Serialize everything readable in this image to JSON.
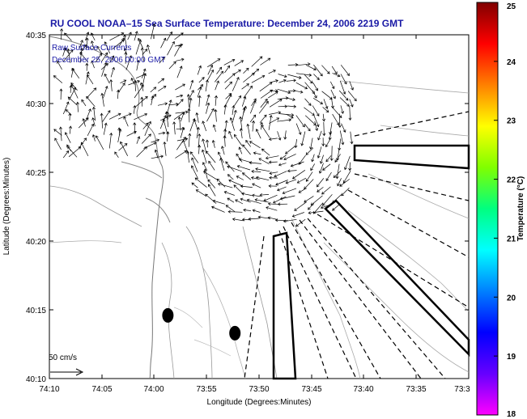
{
  "title": "RU COOL  NOAA–15  Sea Surface Temperature:  December 24, 2006 2219 GMT",
  "overlay": {
    "line1": "Raw Surface Currents",
    "line2": "December 25, 2006 00:00 GMT",
    "scale_label": "50 cm/s"
  },
  "chart_data": {
    "type": "map",
    "xlabel": "Longitude (Degrees:Minutes)",
    "ylabel": "Latitude (Degrees:Minutes)",
    "x_ticks": [
      "74:10",
      "74:05",
      "74:00",
      "73:55",
      "73:50",
      "73:45",
      "73:40",
      "73:35",
      "73:3"
    ],
    "y_ticks": [
      "40:35",
      "40:30",
      "40:25",
      "40:20",
      "40:15",
      "40:10"
    ],
    "xlim": [
      -74.1667,
      -73.5
    ],
    "ylim": [
      40.1667,
      40.5833
    ],
    "colorbar": {
      "label": "Temperature (°C)",
      "ticks": [
        "25",
        "24",
        "23",
        "22",
        "21",
        "20",
        "19",
        "18"
      ],
      "range": [
        18,
        25
      ],
      "colors": [
        "#ff00ff",
        "#6600ff",
        "#0000ff",
        "#0080ff",
        "#00ffff",
        "#00ff80",
        "#80ff00",
        "#ffff00",
        "#ff8000",
        "#ff0000",
        "#800000"
      ]
    },
    "markers": [
      {
        "lon": -73.9783,
        "lat": 40.2433
      },
      {
        "lon": -73.8717,
        "lat": 40.2217
      }
    ]
  }
}
